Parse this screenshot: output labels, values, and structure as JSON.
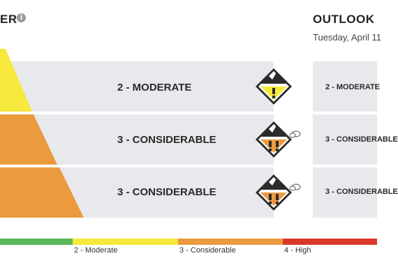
{
  "header": {
    "title_partial": "ER",
    "info_icon": "info-icon",
    "outlook_title": "OUTLOOK",
    "outlook_date": "Tuesday, April 11"
  },
  "danger_rows": [
    {
      "label": "2 - MODERATE",
      "color": "#f6e83c",
      "icon": "danger-moderate-icon",
      "outlook_label": "2 - MODERATE"
    },
    {
      "label": "3 - CONSIDERABLE",
      "color": "#ec9a3e",
      "icon": "danger-considerable-icon",
      "outlook_label": "3 - CONSIDERABLE"
    },
    {
      "label": "3 - CONSIDERABLE",
      "color": "#ec9a3e",
      "icon": "danger-considerable-icon",
      "outlook_label": "3 - CONSIDERABLE"
    }
  ],
  "scale": [
    {
      "label": "",
      "color": "#5cb85c"
    },
    {
      "label": "2 - Moderate",
      "color": "#f6e83c"
    },
    {
      "label": "3 - Considerable",
      "color": "#ec9a3e"
    },
    {
      "label": "4 - High",
      "color": "#d9392b"
    }
  ]
}
